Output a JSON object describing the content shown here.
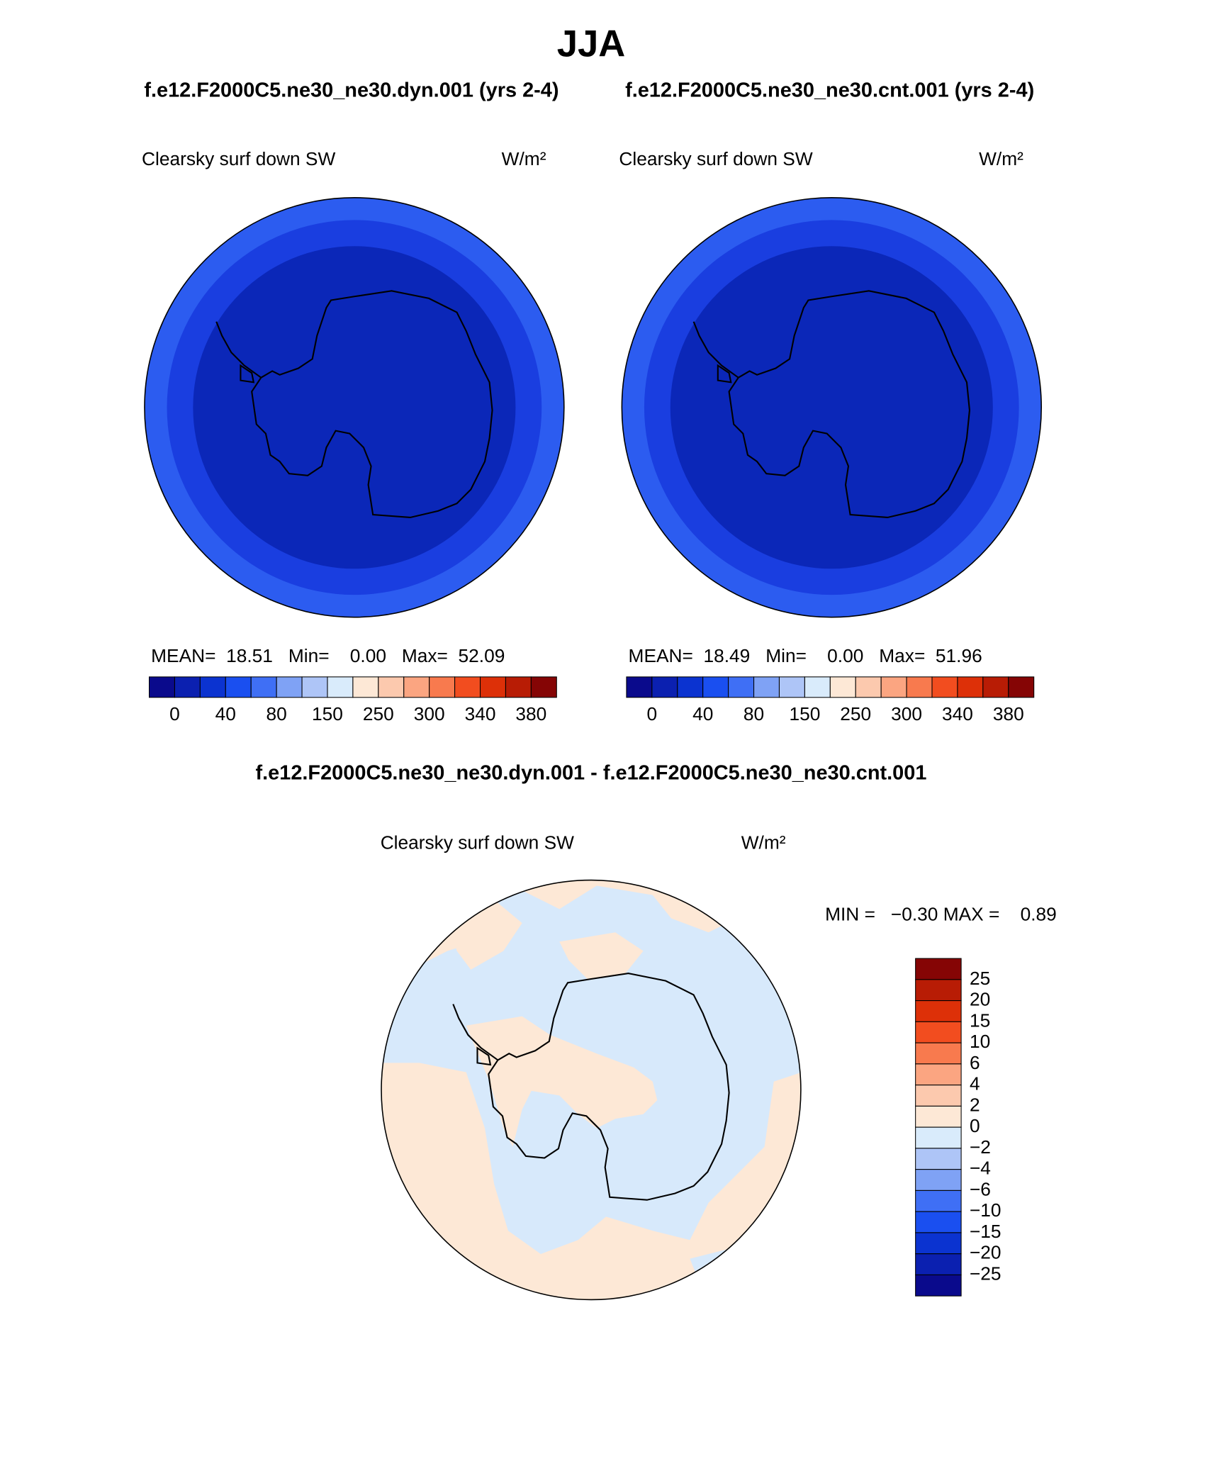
{
  "title": "JJA",
  "subtitles": [
    "f.e12.F2000C5.ne30_ne30.dyn.001 (yrs 2-4)",
    "f.e12.F2000C5.ne30_ne30.cnt.001 (yrs 2-4)"
  ],
  "panels": [
    {
      "label": "Clearsky surf down SW",
      "units": "W/m²",
      "stats": "MEAN=  18.51   Min=    0.00   Max=  52.09"
    },
    {
      "label": "Clearsky surf down SW",
      "units": "W/m²",
      "stats": "MEAN=  18.49   Min=    0.00   Max=  51.96"
    }
  ],
  "colorbar_labels": [
    "0",
    "40",
    "80",
    "150",
    "250",
    "300",
    "340",
    "380"
  ],
  "difference": {
    "title": "f.e12.F2000C5.ne30_ne30.dyn.001 - f.e12.F2000C5.ne30_ne30.cnt.001",
    "label": "Clearsky surf down SW",
    "units": "W/m²",
    "stats": "MIN =   −0.30 MAX =    0.89",
    "colorbar_labels": [
      "25",
      "20",
      "15",
      "10",
      "6",
      "4",
      "2",
      "0",
      "−2",
      "−4",
      "−6",
      "−10",
      "−15",
      "−20",
      "−25"
    ]
  }
}
